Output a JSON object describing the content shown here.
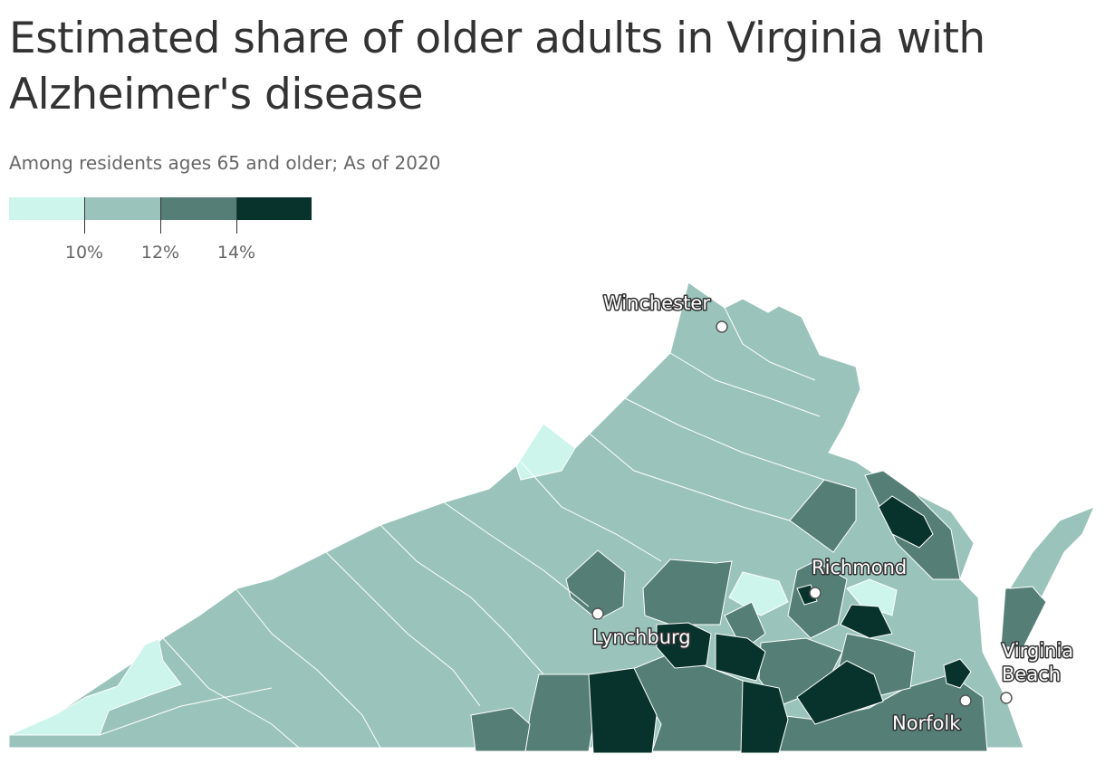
{
  "header": {
    "title": "Estimated share of older adults in Virginia with Alzheimer's disease",
    "subtitle": "Among residents ages 65 and older; As of 2020"
  },
  "legend": {
    "bins": [
      {
        "color": "#cdf5ec"
      },
      {
        "color": "#9ac4bb"
      },
      {
        "color": "#557f76"
      },
      {
        "color": "#08332c"
      }
    ],
    "ticks": [
      "10%",
      "12%",
      "14%"
    ]
  },
  "map": {
    "state": "Virginia",
    "cities": [
      {
        "name": "Winchester"
      },
      {
        "name": "Richmond"
      },
      {
        "name": "Lynchburg"
      },
      {
        "name": "Virginia Beach"
      },
      {
        "name": "Norfolk"
      }
    ]
  }
}
